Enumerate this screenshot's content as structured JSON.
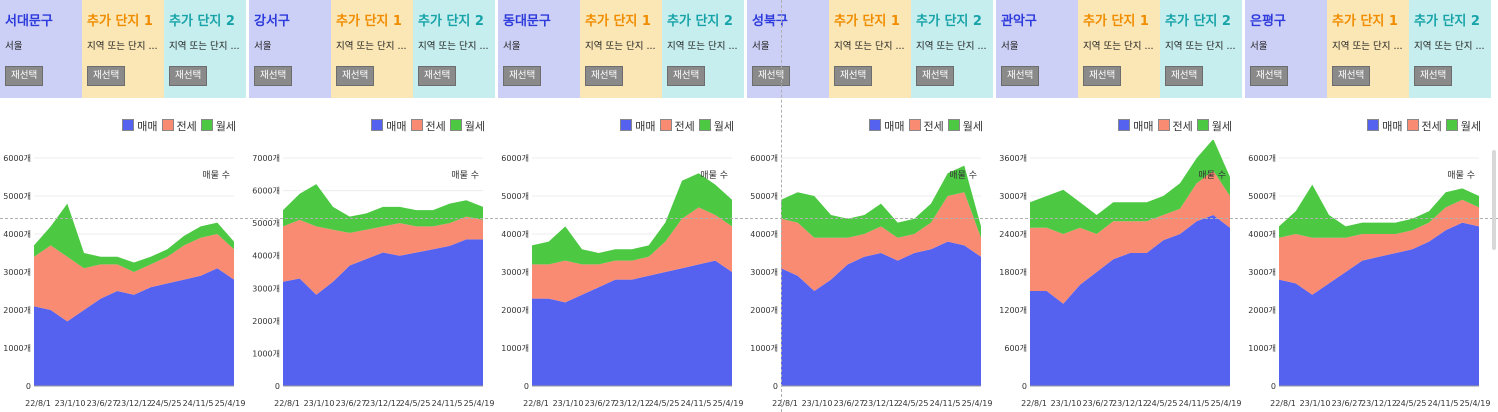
{
  "legend": {
    "sale": "매매",
    "jeonse": "전세",
    "wolse": "월세"
  },
  "colors": {
    "sale": "#5562f0",
    "jeonse": "#f98b72",
    "wolse": "#4cc843",
    "col0": "#cdd0f6",
    "col1": "#fbe7b5",
    "col2": "#c6eeee",
    "title0": "#2e3bdc",
    "title1": "#f08c00",
    "title2": "#18a3a8"
  },
  "chart_label": "매물 수",
  "reselect_label": "재선택",
  "extra1_title": "추가 단지 1",
  "extra2_title": "추가 단지 2",
  "extra_sub": "지역 또는 단지 ...",
  "panels": [
    {
      "district": "서대문구",
      "city": "서울",
      "yticks": [
        "0",
        "1000개",
        "2000개",
        "3000개",
        "4000개",
        "5000개",
        "6000개"
      ],
      "ymax": 6000,
      "xticks": [
        "22/8/1",
        "23/1/10",
        "23/6/27",
        "23/12/12",
        "24/5/25",
        "24/11/5",
        "25/4/19"
      ],
      "chart_data": {
        "type": "area",
        "stacked": true,
        "x": [
          0,
          1,
          2,
          3,
          4,
          5,
          6,
          7,
          8,
          9,
          10,
          11,
          12
        ],
        "series": [
          {
            "name": "매매",
            "values": [
              2100,
              2000,
              1700,
              2000,
              2300,
              2500,
              2400,
              2600,
              2700,
              2800,
              2900,
              3100,
              2800
            ]
          },
          {
            "name": "전세",
            "values": [
              1300,
              1700,
              1700,
              1100,
              900,
              700,
              600,
              600,
              700,
              900,
              1000,
              900,
              800
            ]
          },
          {
            "name": "월세",
            "values": [
              300,
              500,
              1400,
              400,
              200,
              200,
              250,
              200,
              200,
              250,
              300,
              300,
              200
            ]
          }
        ]
      }
    },
    {
      "district": "강서구",
      "city": "서울",
      "yticks": [
        "0",
        "1000개",
        "2000개",
        "3000개",
        "4000개",
        "5000개",
        "6000개",
        "7000개"
      ],
      "ymax": 7000,
      "xticks": [
        "22/8/1",
        "23/1/10",
        "23/6/27",
        "23/12/12",
        "24/5/25",
        "24/11/5",
        "25/4/19"
      ],
      "chart_data": {
        "type": "area",
        "stacked": true,
        "x": [
          0,
          1,
          2,
          3,
          4,
          5,
          6,
          7,
          8,
          9,
          10,
          11,
          12
        ],
        "series": [
          {
            "name": "매매",
            "values": [
              3200,
              3300,
              2800,
              3200,
              3700,
              3900,
              4100,
              4000,
              4100,
              4200,
              4300,
              4500,
              4500
            ]
          },
          {
            "name": "전세",
            "values": [
              1700,
              1800,
              2100,
              1600,
              1000,
              900,
              800,
              1000,
              800,
              700,
              700,
              700,
              600
            ]
          },
          {
            "name": "월세",
            "values": [
              500,
              800,
              1300,
              700,
              500,
              500,
              600,
              500,
              500,
              500,
              600,
              500,
              400
            ]
          }
        ]
      }
    },
    {
      "district": "동대문구",
      "city": "서울",
      "yticks": [
        "0",
        "1000개",
        "2000개",
        "3000개",
        "4000개",
        "5000개",
        "6000개"
      ],
      "ymax": 6000,
      "xticks": [
        "22/8/1",
        "23/1/10",
        "23/6/27",
        "23/12/12",
        "24/5/25",
        "24/11/5",
        "25/4/19"
      ],
      "chart_data": {
        "type": "area",
        "stacked": true,
        "x": [
          0,
          1,
          2,
          3,
          4,
          5,
          6,
          7,
          8,
          9,
          10,
          11,
          12
        ],
        "series": [
          {
            "name": "매매",
            "values": [
              2300,
              2300,
              2200,
              2400,
              2600,
              2800,
              2800,
              2900,
              3000,
              3100,
              3200,
              3300,
              3000
            ]
          },
          {
            "name": "전세",
            "values": [
              900,
              900,
              1100,
              800,
              600,
              500,
              500,
              500,
              800,
              1300,
              1500,
              1200,
              1200
            ]
          },
          {
            "name": "월세",
            "values": [
              500,
              600,
              900,
              400,
              300,
              300,
              300,
              300,
              500,
              1000,
              900,
              800,
              700
            ]
          }
        ]
      }
    },
    {
      "district": "성북구",
      "city": "서울",
      "yticks": [
        "0",
        "1000개",
        "2000개",
        "3000개",
        "4000개",
        "5000개",
        "6000개"
      ],
      "ymax": 6000,
      "xticks": [
        "22/8/1",
        "23/1/10",
        "23/6/27",
        "23/12/12",
        "24/5/25",
        "24/11/5",
        "25/4/19"
      ],
      "chart_data": {
        "type": "area",
        "stacked": true,
        "x": [
          0,
          1,
          2,
          3,
          4,
          5,
          6,
          7,
          8,
          9,
          10,
          11,
          12
        ],
        "series": [
          {
            "name": "매매",
            "values": [
              3100,
              2900,
              2500,
              2800,
              3200,
              3400,
              3500,
              3300,
              3500,
              3600,
              3800,
              3700,
              3400
            ]
          },
          {
            "name": "전세",
            "values": [
              1300,
              1400,
              1400,
              1100,
              700,
              600,
              700,
              600,
              500,
              700,
              1200,
              1400,
              500
            ]
          },
          {
            "name": "월세",
            "values": [
              500,
              800,
              1100,
              600,
              500,
              500,
              600,
              400,
              400,
              500,
              600,
              700,
              300
            ]
          }
        ]
      }
    },
    {
      "district": "관악구",
      "city": "서울",
      "yticks": [
        "0",
        "600개",
        "1200개",
        "1800개",
        "2400개",
        "3000개",
        "3600개"
      ],
      "ymax": 3600,
      "xticks": [
        "22/8/1",
        "23/1/10",
        "23/6/27",
        "23/12/12",
        "24/5/25",
        "24/11/5",
        "25/4/19"
      ],
      "chart_data": {
        "type": "area",
        "stacked": true,
        "x": [
          0,
          1,
          2,
          3,
          4,
          5,
          6,
          7,
          8,
          9,
          10,
          11,
          12
        ],
        "series": [
          {
            "name": "매매",
            "values": [
              1500,
              1500,
              1300,
              1600,
              1800,
              2000,
              2100,
              2100,
              2300,
              2400,
              2600,
              2700,
              2500
            ]
          },
          {
            "name": "전세",
            "values": [
              1000,
              1000,
              1100,
              900,
              600,
              600,
              500,
              500,
              400,
              400,
              600,
              700,
              500
            ]
          },
          {
            "name": "월세",
            "values": [
              400,
              500,
              700,
              400,
              300,
              300,
              300,
              300,
              300,
              400,
              400,
              500,
              300
            ]
          }
        ]
      }
    },
    {
      "district": "은평구",
      "city": "서울",
      "yticks": [
        "0",
        "1000개",
        "2000개",
        "3000개",
        "4000개",
        "5000개",
        "6000개"
      ],
      "ymax": 6000,
      "xticks": [
        "22/8/1",
        "23/1/10",
        "23/6/27",
        "23/12/12",
        "24/5/25",
        "24/11/5",
        "25/4/19"
      ],
      "chart_data": {
        "type": "area",
        "stacked": true,
        "x": [
          0,
          1,
          2,
          3,
          4,
          5,
          6,
          7,
          8,
          9,
          10,
          11,
          12
        ],
        "series": [
          {
            "name": "매매",
            "values": [
              2800,
              2700,
              2400,
              2700,
              3000,
              3300,
              3400,
              3500,
              3600,
              3800,
              4100,
              4300,
              4200
            ]
          },
          {
            "name": "전세",
            "values": [
              1100,
              1300,
              1500,
              1200,
              900,
              700,
              600,
              500,
              500,
              500,
              600,
              600,
              500
            ]
          },
          {
            "name": "월세",
            "values": [
              300,
              600,
              1400,
              600,
              300,
              300,
              300,
              300,
              300,
              300,
              400,
              300,
              300
            ]
          }
        ]
      }
    }
  ]
}
